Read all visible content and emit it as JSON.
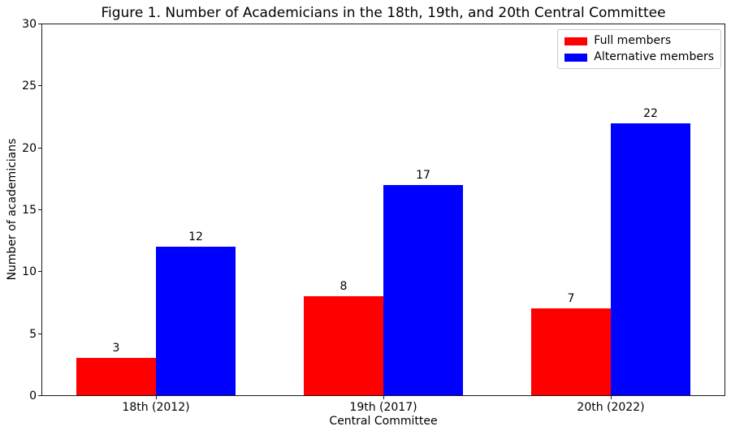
{
  "chart_data": {
    "type": "bar",
    "title": "Figure 1. Number of Academicians in the 18th, 19th, and 20th Central Committee",
    "categories": [
      "18th (2012)",
      "19th (2017)",
      "20th (2022)"
    ],
    "series": [
      {
        "name": "Full members",
        "color": "#ff0000",
        "values": [
          3,
          8,
          7
        ]
      },
      {
        "name": "Alternative members",
        "color": "#0000ff",
        "values": [
          12,
          17,
          22
        ]
      }
    ],
    "xlabel": "Central Committee",
    "ylabel": "Number of academicians",
    "ylim": [
      0,
      30
    ],
    "yticks": [
      0,
      5,
      10,
      15,
      20,
      25,
      30
    ],
    "bar_width_fraction": 0.35,
    "value_labels_shown": true,
    "grid": false,
    "legend": {
      "position": "upper right",
      "border_color": "#cccccc"
    }
  }
}
